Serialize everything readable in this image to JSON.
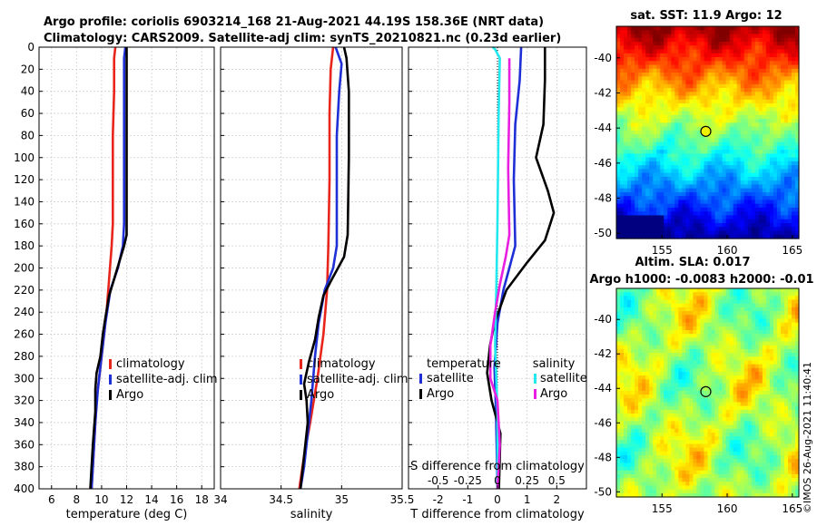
{
  "title_line1": "Argo profile: coriolis 6903214_168 21-Aug-2021 44.19S 158.36E (NRT data)",
  "title_line2": "Climatology: CARS2009. Satellite-adj clim: synTS_20210821.nc (0.23d earlier)",
  "copyright": "©IMOS 26-Aug-2021 11:40:41",
  "colors": {
    "clim": "#e8251b",
    "sat": "#1f2fd6",
    "argo": "#000000",
    "sat_sal": "#22e8ef",
    "argo_sal": "#e81fe0"
  },
  "chart_data": [
    {
      "id": "temp",
      "type": "line",
      "xlabel": "temperature (deg C)",
      "ylabel": "",
      "xlim": [
        5,
        19
      ],
      "ylim": [
        0,
        400
      ],
      "y_reversed": true,
      "xticks": [
        6,
        8,
        10,
        12,
        14,
        16,
        18
      ],
      "xtick_labels": [
        "6",
        "8",
        "10",
        "12",
        "14",
        "16",
        "18"
      ],
      "yticks": [
        0,
        20,
        40,
        60,
        80,
        100,
        120,
        140,
        160,
        180,
        200,
        220,
        240,
        260,
        280,
        300,
        320,
        340,
        360,
        380,
        400
      ],
      "ytick_labels": [
        "0",
        "20",
        "40",
        "60",
        "80",
        "100",
        "120",
        "140",
        "160",
        "180",
        "200",
        "220",
        "240",
        "260",
        "280",
        "300",
        "320",
        "340",
        "360",
        "380",
        "400"
      ],
      "legend": [
        "climatology",
        "satellite-adj. clim",
        "Argo"
      ],
      "series": [
        {
          "name": "climatology",
          "color": "#e8251b",
          "points": [
            [
              11.1,
              0
            ],
            [
              11.0,
              10
            ],
            [
              11.0,
              40
            ],
            [
              10.9,
              80
            ],
            [
              10.9,
              120
            ],
            [
              10.9,
              160
            ],
            [
              10.8,
              180
            ],
            [
              10.6,
              210
            ],
            [
              10.4,
              240
            ],
            [
              10.2,
              260
            ],
            [
              9.9,
              290
            ],
            [
              9.6,
              320
            ],
            [
              9.4,
              360
            ],
            [
              9.2,
              400
            ]
          ]
        },
        {
          "name": "satellite-adj. clim",
          "color": "#1f2fd6",
          "points": [
            [
              11.9,
              0
            ],
            [
              11.8,
              10
            ],
            [
              11.8,
              40
            ],
            [
              11.8,
              80
            ],
            [
              11.8,
              120
            ],
            [
              11.8,
              160
            ],
            [
              11.7,
              180
            ],
            [
              11.3,
              200
            ],
            [
              10.7,
              220
            ],
            [
              10.3,
              250
            ],
            [
              10.0,
              280
            ],
            [
              9.7,
              310
            ],
            [
              9.5,
              340
            ],
            [
              9.3,
              380
            ],
            [
              9.2,
              400
            ]
          ]
        },
        {
          "name": "Argo",
          "color": "#000000",
          "points": [
            [
              12.0,
              0
            ],
            [
              12.0,
              30
            ],
            [
              12.0,
              100
            ],
            [
              12.0,
              170
            ],
            [
              11.8,
              180
            ],
            [
              11.4,
              195
            ],
            [
              11.0,
              210
            ],
            [
              10.6,
              225
            ],
            [
              10.3,
              245
            ],
            [
              10.1,
              260
            ],
            [
              9.9,
              280
            ],
            [
              9.6,
              295
            ],
            [
              9.5,
              310
            ],
            [
              9.5,
              330
            ],
            [
              9.3,
              360
            ],
            [
              9.1,
              400
            ]
          ]
        }
      ]
    },
    {
      "id": "sal",
      "type": "line",
      "xlabel": "salinity",
      "ylabel": "",
      "xlim": [
        34,
        35.5
      ],
      "ylim": [
        0,
        400
      ],
      "y_reversed": true,
      "xticks": [
        34,
        34.5,
        35,
        35.5
      ],
      "xtick_labels": [
        "34",
        "34.5",
        "35",
        "35.5"
      ],
      "yticks": [
        0,
        20,
        40,
        60,
        80,
        100,
        120,
        140,
        160,
        180,
        200,
        220,
        240,
        260,
        280,
        300,
        320,
        340,
        360,
        380,
        400
      ],
      "legend": [
        "climatology",
        "satellite-adj. clim",
        "Argo"
      ],
      "series": [
        {
          "name": "climatology",
          "color": "#e8251b",
          "points": [
            [
              34.93,
              0
            ],
            [
              34.91,
              20
            ],
            [
              34.9,
              60
            ],
            [
              34.9,
              120
            ],
            [
              34.89,
              180
            ],
            [
              34.88,
              220
            ],
            [
              34.85,
              260
            ],
            [
              34.8,
              300
            ],
            [
              34.74,
              340
            ],
            [
              34.69,
              370
            ],
            [
              34.65,
              400
            ]
          ]
        },
        {
          "name": "satellite-adj. clim",
          "color": "#1f2fd6",
          "points": [
            [
              34.95,
              0
            ],
            [
              35.0,
              15
            ],
            [
              34.98,
              40
            ],
            [
              34.96,
              80
            ],
            [
              34.96,
              140
            ],
            [
              34.96,
              180
            ],
            [
              34.93,
              200
            ],
            [
              34.86,
              220
            ],
            [
              34.81,
              250
            ],
            [
              34.78,
              280
            ],
            [
              34.75,
              320
            ],
            [
              34.72,
              350
            ],
            [
              34.69,
              380
            ],
            [
              34.66,
              400
            ]
          ]
        },
        {
          "name": "Argo",
          "color": "#000000",
          "points": [
            [
              35.02,
              0
            ],
            [
              35.04,
              10
            ],
            [
              35.06,
              40
            ],
            [
              35.06,
              100
            ],
            [
              35.05,
              170
            ],
            [
              35.02,
              190
            ],
            [
              34.92,
              210
            ],
            [
              34.85,
              225
            ],
            [
              34.81,
              245
            ],
            [
              34.78,
              265
            ],
            [
              34.73,
              285
            ],
            [
              34.69,
              305
            ],
            [
              34.71,
              320
            ],
            [
              34.72,
              340
            ],
            [
              34.68,
              380
            ],
            [
              34.66,
              400
            ]
          ]
        }
      ]
    },
    {
      "id": "diff",
      "type": "line",
      "xlabel": "T difference from climatology",
      "x2label": "S difference from climatology",
      "xlim": [
        -3,
        3
      ],
      "x2lim": [
        -0.75,
        0.75
      ],
      "ylim": [
        0,
        400
      ],
      "y_reversed": true,
      "xticks": [
        -2,
        -1,
        0,
        1,
        2
      ],
      "xtick_labels": [
        "-2",
        "-1",
        "0",
        "1",
        "2"
      ],
      "x2ticks": [
        -0.5,
        -0.25,
        0,
        0.25,
        0.5
      ],
      "x2tick_labels": [
        "-0.5",
        "-0.25",
        "0",
        "0.25",
        "0.5"
      ],
      "yticks": [
        0,
        20,
        40,
        60,
        80,
        100,
        120,
        140,
        160,
        180,
        200,
        220,
        240,
        260,
        280,
        300,
        320,
        340,
        360,
        380,
        400
      ],
      "legend_left_title": "temperature",
      "legend_right_title": "salinity",
      "legend_left": [
        "satellite",
        "Argo"
      ],
      "legend_right": [
        "satellite",
        "Argo"
      ],
      "series": [
        {
          "name": "T satellite",
          "color": "#1f2fd6",
          "axis": "T",
          "points": [
            [
              0.8,
              0
            ],
            [
              0.75,
              30
            ],
            [
              0.6,
              70
            ],
            [
              0.55,
              120
            ],
            [
              0.6,
              180
            ],
            [
              0.4,
              200
            ],
            [
              0.2,
              220
            ],
            [
              0.0,
              250
            ],
            [
              -0.1,
              290
            ],
            [
              -0.05,
              330
            ],
            [
              0.0,
              400
            ]
          ]
        },
        {
          "name": "T Argo",
          "color": "#000000",
          "axis": "T",
          "points": [
            [
              1.6,
              0
            ],
            [
              1.6,
              30
            ],
            [
              1.55,
              70
            ],
            [
              1.3,
              100
            ],
            [
              1.7,
              130
            ],
            [
              1.9,
              150
            ],
            [
              1.6,
              175
            ],
            [
              1.0,
              195
            ],
            [
              0.3,
              220
            ],
            [
              -0.1,
              250
            ],
            [
              -0.25,
              270
            ],
            [
              -0.35,
              295
            ],
            [
              -0.2,
              320
            ],
            [
              0.1,
              350
            ],
            [
              0.05,
              400
            ]
          ]
        },
        {
          "name": "S satellite",
          "color": "#22e8ef",
          "axis": "S",
          "points": [
            [
              -0.04,
              0
            ],
            [
              -0.02,
              2
            ],
            [
              0.02,
              10
            ],
            [
              0.01,
              60
            ],
            [
              0.0,
              160
            ],
            [
              -0.01,
              220
            ],
            [
              -0.02,
              270
            ],
            [
              0.0,
              330
            ],
            [
              0.0,
              400
            ]
          ]
        },
        {
          "name": "S Argo",
          "color": "#e81fe0",
          "axis": "S",
          "points": [
            [
              0.1,
              10
            ],
            [
              0.1,
              50
            ],
            [
              0.09,
              110
            ],
            [
              0.1,
              170
            ],
            [
              0.07,
              190
            ],
            [
              0.02,
              215
            ],
            [
              -0.02,
              240
            ],
            [
              -0.06,
              270
            ],
            [
              -0.06,
              300
            ],
            [
              0.0,
              320
            ],
            [
              0.02,
              360
            ],
            [
              0.0,
              400
            ]
          ]
        }
      ]
    },
    {
      "id": "sst_map",
      "type": "heatmap",
      "title": "sat. SST: 11.9 Argo: 12",
      "xlim": [
        151.5,
        165.5
      ],
      "ylim": [
        -50.3,
        -38.2
      ],
      "xticks": [
        155,
        160,
        165
      ],
      "xtick_labels": [
        "155",
        "160",
        "165"
      ],
      "yticks": [
        -40,
        -42,
        -44,
        -46,
        -48,
        -50
      ],
      "ytick_labels": [
        "-40",
        "-42",
        "-44",
        "-46",
        "-48",
        "-50"
      ],
      "marker": {
        "lon": 158.36,
        "lat": -44.19
      }
    },
    {
      "id": "sla_map",
      "type": "heatmap",
      "title": "Altim. SLA: 0.017",
      "subtitle": "Argo h1000: -0.0083 h2000: -0.01",
      "xlim": [
        151.5,
        165.5
      ],
      "ylim": [
        -50.3,
        -38.2
      ],
      "xticks": [
        155,
        160,
        165
      ],
      "xtick_labels": [
        "155",
        "160",
        "165"
      ],
      "yticks": [
        -40,
        -42,
        -44,
        -46,
        -48,
        -50
      ],
      "ytick_labels": [
        "-40",
        "-42",
        "-44",
        "-46",
        "-48",
        "-50"
      ],
      "marker": {
        "lon": 158.36,
        "lat": -44.19
      }
    }
  ]
}
